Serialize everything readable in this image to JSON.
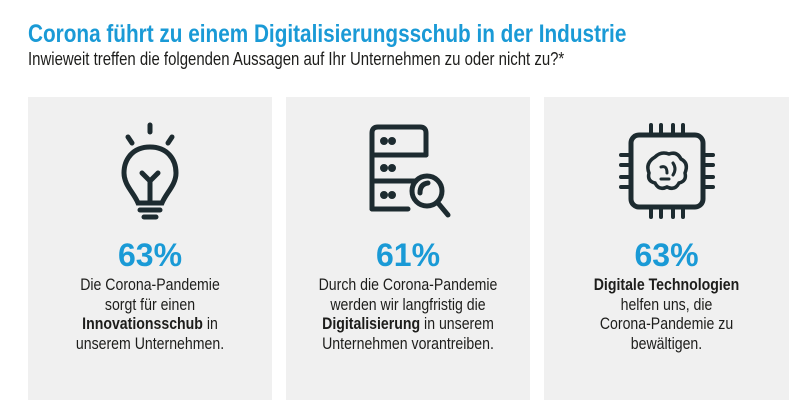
{
  "header": {
    "title": "Corona führt zu einem Digitalisierungsschub in der Industrie",
    "subtitle": "Inwieweit treffen die folgenden Aussagen auf Ihr Unternehmen zu oder nicht zu?*"
  },
  "colors": {
    "accent": "#1a9ad6",
    "icon": "#1d2b30",
    "panel_bg": "#f0f0f0"
  },
  "panels": [
    {
      "icon": "lightbulb-icon",
      "value": "63%",
      "lines": [
        {
          "pre": "Die Corona-Pandemie",
          "bold": "",
          "post": ""
        },
        {
          "pre": "sorgt für einen",
          "bold": "",
          "post": ""
        },
        {
          "pre": "",
          "bold": "Innovationsschub",
          "post": " in"
        },
        {
          "pre": "unserem Unternehmen.",
          "bold": "",
          "post": ""
        }
      ]
    },
    {
      "icon": "server-search-icon",
      "value": "61%",
      "lines": [
        {
          "pre": "Durch die Corona-Pandemie",
          "bold": "",
          "post": ""
        },
        {
          "pre": "werden wir langfristig die",
          "bold": "",
          "post": ""
        },
        {
          "pre": "",
          "bold": "Digitalisierung",
          "post": " in unserem"
        },
        {
          "pre": "Unternehmen vorantreiben.",
          "bold": "",
          "post": ""
        }
      ]
    },
    {
      "icon": "ai-chip-brain-icon",
      "value": "63%",
      "lines": [
        {
          "pre": "",
          "bold": "Digitale Technologien",
          "post": ""
        },
        {
          "pre": "helfen uns, die",
          "bold": "",
          "post": ""
        },
        {
          "pre": "Corona-Pandemie zu",
          "bold": "",
          "post": ""
        },
        {
          "pre": "bewältigen.",
          "bold": "",
          "post": ""
        }
      ]
    }
  ]
}
